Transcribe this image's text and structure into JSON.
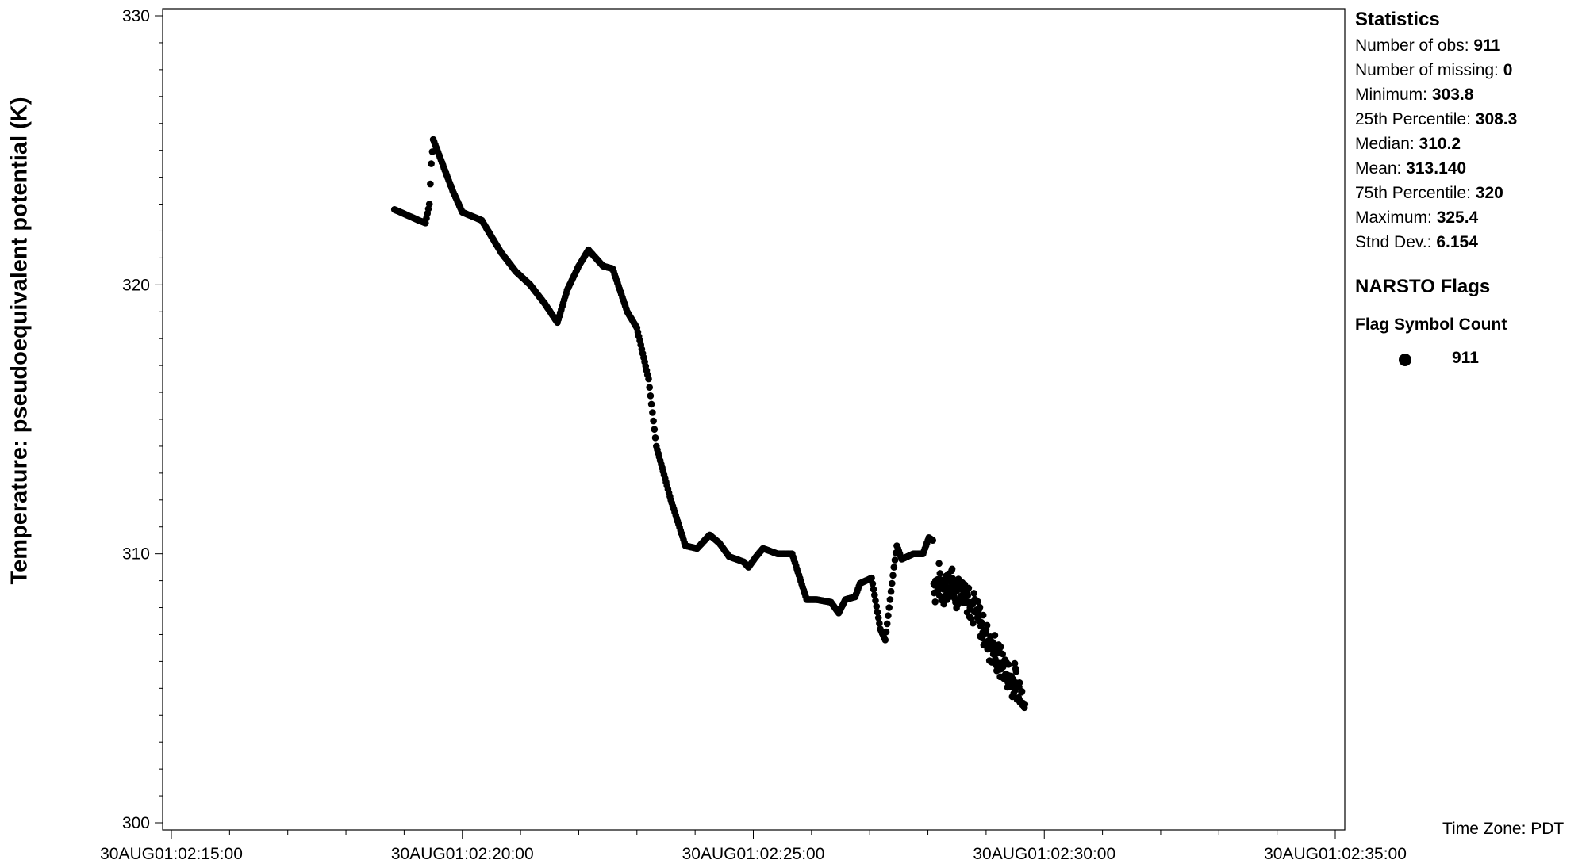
{
  "chart_data": {
    "type": "scatter",
    "ylabel": "Temperature: pseudoequivalent potential (K)",
    "ylim": [
      300,
      330
    ],
    "y_ticks": [
      "300",
      "310",
      "320",
      "330"
    ],
    "x_ticks": [
      "30AUG01:02:15:00",
      "30AUG01:02:20:00",
      "30AUG01:02:25:00",
      "30AUG01:02:30:00",
      "30AUG01:02:35:00"
    ],
    "xlim": [
      "30AUG01:02:15:00",
      "30AUG01:02:35:00"
    ],
    "x_unit": "seconds after 02:15:00",
    "point_color": "#000000",
    "curve": [
      [
        230,
        322.8
      ],
      [
        255,
        322.4
      ],
      [
        262,
        322.3
      ],
      [
        266,
        323.0
      ],
      [
        268,
        324.5
      ],
      [
        270,
        325.4
      ],
      [
        290,
        323.5
      ],
      [
        300,
        322.7
      ],
      [
        320,
        322.4
      ],
      [
        340,
        321.2
      ],
      [
        355,
        320.5
      ],
      [
        370,
        320.0
      ],
      [
        385,
        319.3
      ],
      [
        398,
        318.6
      ],
      [
        408,
        319.8
      ],
      [
        420,
        320.7
      ],
      [
        430,
        321.3
      ],
      [
        445,
        320.7
      ],
      [
        455,
        320.6
      ],
      [
        470,
        319.0
      ],
      [
        480,
        318.4
      ],
      [
        492,
        316.5
      ],
      [
        500,
        314.0
      ],
      [
        515,
        312.0
      ],
      [
        530,
        310.3
      ],
      [
        542,
        310.2
      ],
      [
        555,
        310.7
      ],
      [
        565,
        310.4
      ],
      [
        575,
        309.9
      ],
      [
        590,
        309.7
      ],
      [
        595,
        309.5
      ],
      [
        603,
        309.9
      ],
      [
        610,
        310.2
      ],
      [
        625,
        310.0
      ],
      [
        640,
        310.0
      ],
      [
        655,
        308.3
      ],
      [
        665,
        308.3
      ],
      [
        680,
        308.2
      ],
      [
        688,
        307.8
      ],
      [
        695,
        308.3
      ],
      [
        705,
        308.4
      ],
      [
        710,
        308.9
      ],
      [
        722,
        309.1
      ],
      [
        731,
        307.2
      ],
      [
        736,
        306.8
      ],
      [
        740,
        308.0
      ],
      [
        745,
        309.5
      ],
      [
        748,
        310.3
      ],
      [
        753,
        309.8
      ],
      [
        765,
        310.0
      ],
      [
        775,
        310.0
      ],
      [
        781,
        310.6
      ],
      [
        785,
        310.5
      ]
    ],
    "scatter_start_seconds": 786,
    "scatter_end_seconds": 880,
    "scatter_trend": [
      [
        790,
        308.9
      ],
      [
        820,
        308.6
      ],
      [
        840,
        306.9
      ],
      [
        860,
        305.6
      ],
      [
        880,
        304.7
      ]
    ],
    "scatter_spread_K": 0.55
  },
  "stats": {
    "title": "Statistics",
    "rows": [
      {
        "label": "Number of obs: ",
        "value": "911"
      },
      {
        "label": "Number of missing: ",
        "value": "0"
      },
      {
        "label": "Minimum: ",
        "value": "303.8"
      },
      {
        "label": "25th Percentile: ",
        "value": "308.3"
      },
      {
        "label": "Median: ",
        "value": "310.2"
      },
      {
        "label": "Mean: ",
        "value": "313.140"
      },
      {
        "label": "75th Percentile: ",
        "value": "320"
      },
      {
        "label": "Maximum: ",
        "value": "325.4"
      },
      {
        "label": "Stnd Dev.: ",
        "value": "6.154"
      }
    ]
  },
  "flags": {
    "title": "NARSTO Flags",
    "columns": "Flag Symbol Count",
    "symbol": "filled-circle-icon",
    "count": "911"
  },
  "timezone": "Time Zone: PDT"
}
